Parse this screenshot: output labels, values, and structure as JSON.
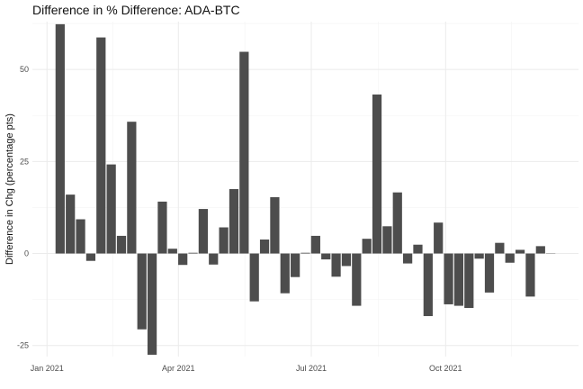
{
  "chart_data": {
    "type": "bar",
    "title": "Difference in % Difference: ADA-BTC",
    "xlabel": "",
    "ylabel": "Difference in Chg (percentage pts)",
    "x_axis_type": "date",
    "x_ticks": [
      {
        "date": "2021-01-01",
        "label": "Jan 2021"
      },
      {
        "date": "2021-04-01",
        "label": "Apr 2021"
      },
      {
        "date": "2021-07-01",
        "label": "Jul 2021"
      },
      {
        "date": "2021-10-01",
        "label": "Oct 2021"
      }
    ],
    "y_ticks": [
      -25,
      0,
      25,
      50
    ],
    "ylim": [
      -28,
      63
    ],
    "xlim": [
      "2020-12-22",
      "2021-12-31"
    ],
    "grid": true,
    "bar_color": "#4d4d4d",
    "bar_width_days": 6.3,
    "dates": [
      "2021-01-10",
      "2021-01-17",
      "2021-01-24",
      "2021-01-31",
      "2021-02-07",
      "2021-02-14",
      "2021-02-21",
      "2021-02-28",
      "2021-03-07",
      "2021-03-14",
      "2021-03-21",
      "2021-03-28",
      "2021-04-04",
      "2021-04-11",
      "2021-04-18",
      "2021-04-25",
      "2021-05-02",
      "2021-05-09",
      "2021-05-16",
      "2021-05-23",
      "2021-05-30",
      "2021-06-06",
      "2021-06-13",
      "2021-06-20",
      "2021-06-27",
      "2021-07-04",
      "2021-07-11",
      "2021-07-18",
      "2021-07-25",
      "2021-08-01",
      "2021-08-08",
      "2021-08-15",
      "2021-08-22",
      "2021-08-29",
      "2021-09-05",
      "2021-09-12",
      "2021-09-19",
      "2021-09-26",
      "2021-10-03",
      "2021-10-10",
      "2021-10-17",
      "2021-10-24",
      "2021-10-31",
      "2021-11-07",
      "2021-11-14",
      "2021-11-21",
      "2021-11-28",
      "2021-12-05",
      "2021-12-12"
    ],
    "values": [
      62.3,
      16.0,
      9.3,
      -2.0,
      58.7,
      24.2,
      4.8,
      35.8,
      -20.6,
      -27.5,
      14.1,
      1.3,
      -3.1,
      0.2,
      12.1,
      -3.0,
      7.1,
      17.5,
      54.8,
      -13.0,
      3.8,
      15.3,
      -10.8,
      -6.4,
      0.2,
      4.8,
      -1.6,
      -6.3,
      -3.4,
      -14.2,
      4.0,
      43.2,
      7.4,
      16.6,
      -2.7,
      2.4,
      -17.0,
      8.4,
      -13.8,
      -14.2,
      -14.8,
      -1.4,
      -10.6,
      2.9,
      -2.5,
      1.0,
      -11.7,
      2.0,
      0
    ]
  }
}
